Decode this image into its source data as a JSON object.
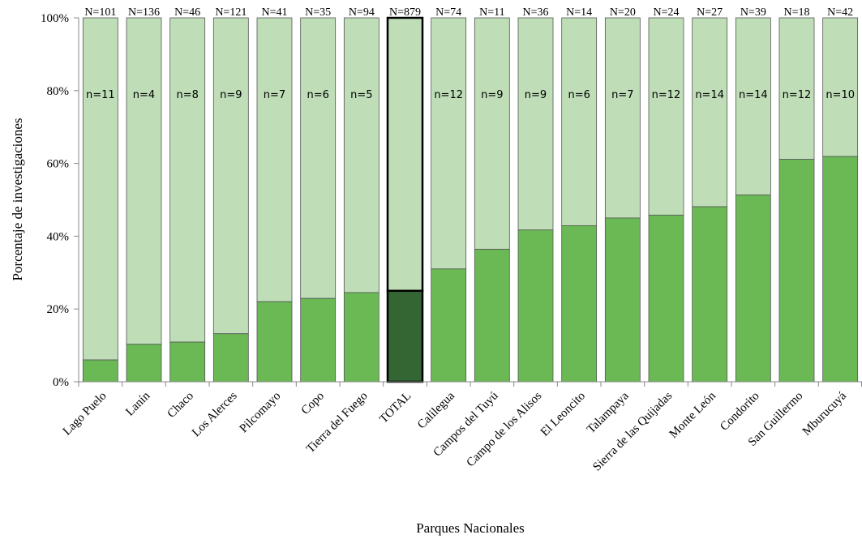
{
  "chart_data": {
    "type": "bar",
    "stacked": true,
    "percent": true,
    "title": "",
    "xlabel": "Parques Nacionales",
    "ylabel": "Porcentaje de investigaciones",
    "ylim": [
      0,
      100
    ],
    "yticks": [
      "0%",
      "20%",
      "40%",
      "60%",
      "80%",
      "100%"
    ],
    "grid": false,
    "legend": "none",
    "colors": {
      "lower": "#6ab955",
      "upper": "#bfdeb8",
      "total_lower": "#336633",
      "border": "#555555",
      "total_border": "#000000"
    },
    "highlight_category": "TOTAL",
    "categories": [
      "Lago Puelo",
      "Lanín",
      "Chaco",
      "Los Alerces",
      "Pilcomayo",
      "Copo",
      "Tierra del Fuego",
      "TOTAL",
      "Calilegua",
      "Campos del Tuyú",
      "Campo de los Alisos",
      "El Leoncito",
      "Talampaya",
      "Sierra de las Quijadas",
      "Monte León",
      "Condorito",
      "San Guillermo",
      "Mburucuyá"
    ],
    "N_labels": [
      "N=101",
      "N=136",
      "N=46",
      "N=121",
      "N=41",
      "N=35",
      "N=94",
      "N=879",
      "N=74",
      "N=11",
      "N=36",
      "N=14",
      "N=20",
      "N=24",
      "N=27",
      "N=39",
      "N=18",
      "N=42"
    ],
    "n_labels": [
      "n=11",
      "n=4",
      "n=8",
      "n=9",
      "n=7",
      "n=6",
      "n=5",
      "",
      "n=12",
      "n=9",
      "n=9",
      "n=6",
      "n=7",
      "n=12",
      "n=14",
      "n=14",
      "n=12",
      "n=10"
    ],
    "series": [
      {
        "values": [
          6,
          10.3,
          10.9,
          13.2,
          22,
          22.9,
          24.5,
          25,
          31,
          36.4,
          41.7,
          42.9,
          45,
          45.8,
          48.1,
          51.3,
          61.1,
          61.9
        ]
      },
      {
        "values": [
          94,
          89.7,
          89.1,
          86.8,
          78,
          77.1,
          75.5,
          75,
          69,
          63.6,
          58.3,
          57.1,
          55,
          54.2,
          51.9,
          48.7,
          38.9,
          38.1
        ]
      }
    ]
  }
}
